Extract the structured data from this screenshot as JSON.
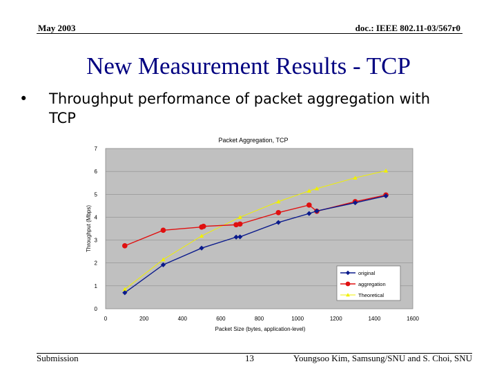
{
  "header": {
    "date": "May 2003",
    "doc_id": "doc.: IEEE 802.11-03/567r0"
  },
  "slide_title": "New Measurement Results - TCP",
  "bullet": {
    "marker": "•",
    "text": "Throughput performance of packet aggregation with TCP"
  },
  "footer": {
    "left": "Submission",
    "page": "13",
    "right": "Youngsoo Kim, Samsung/SNU and S. Choi, SNU"
  },
  "colors": {
    "title": "#000080",
    "plot_bg": "#c0c0c0",
    "original": "#0a1a8c",
    "aggregation": "#e01010",
    "theoretical": "#f0f000"
  },
  "chart_data": {
    "type": "line",
    "title": "Packet Aggregation, TCP",
    "xlabel": "Packet Size (bytes, application-level)",
    "ylabel": "Throughput (Mbps)",
    "xlim": [
      0,
      1600
    ],
    "ylim": [
      0,
      7
    ],
    "xticks": [
      0,
      200,
      400,
      600,
      800,
      1000,
      1200,
      1400,
      1600
    ],
    "yticks": [
      0,
      1,
      2,
      3,
      4,
      5,
      6,
      7
    ],
    "grid": true,
    "legend_position": "bottom-right",
    "series": [
      {
        "name": "original",
        "marker": "diamond",
        "x": [
          100,
          300,
          500,
          680,
          700,
          900,
          1060,
          1100,
          1300,
          1460
        ],
        "y": [
          0.7,
          1.92,
          2.65,
          3.13,
          3.14,
          3.77,
          4.16,
          4.27,
          4.63,
          4.93
        ]
      },
      {
        "name": "aggregation",
        "marker": "circle",
        "x": [
          100,
          300,
          500,
          510,
          680,
          700,
          900,
          1060,
          1100,
          1300,
          1460
        ],
        "y": [
          2.75,
          3.43,
          3.57,
          3.6,
          3.67,
          3.7,
          4.2,
          4.53,
          4.26,
          4.68,
          4.97
        ]
      },
      {
        "name": "Theoretical",
        "marker": "triangle",
        "x": [
          100,
          300,
          500,
          700,
          900,
          1060,
          1100,
          1300,
          1460
        ],
        "y": [
          0.85,
          2.15,
          3.18,
          4.0,
          4.68,
          5.15,
          5.25,
          5.72,
          6.03
        ]
      }
    ]
  }
}
